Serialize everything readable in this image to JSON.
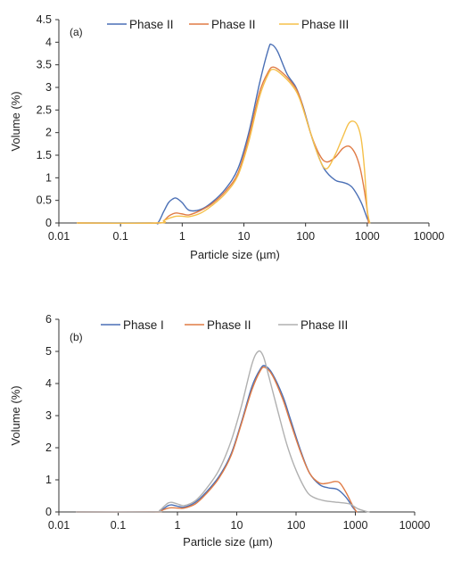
{
  "chart_data": [
    {
      "type": "line",
      "panel_label": "(a)",
      "xlabel": "Particle size (µm)",
      "ylabel": "Volume (%)",
      "x_scale": "log",
      "xlim": [
        0.01,
        10000
      ],
      "ylim": [
        0,
        4.5
      ],
      "x_ticks": [
        "0.01",
        "0.1",
        "1",
        "10",
        "100",
        "1000",
        "10000"
      ],
      "y_ticks": [
        "0",
        "0.5",
        "1",
        "1.5",
        "2",
        "2.5",
        "3",
        "3.5",
        "4",
        "4.5"
      ],
      "legend_position": "top",
      "grid": false,
      "series": [
        {
          "name": "Phase II",
          "color": "#4a6fb5",
          "x": [
            0.02,
            0.3,
            0.4,
            0.5,
            0.6,
            0.7,
            0.8,
            1.0,
            1.3,
            2,
            3,
            5,
            8,
            12,
            18,
            25,
            28,
            35,
            50,
            70,
            90,
            120,
            150,
            200,
            300,
            400,
            500,
            600,
            800,
            1000,
            1100
          ],
          "y": [
            0,
            0,
            0,
            0.25,
            0.45,
            0.53,
            0.55,
            0.45,
            0.28,
            0.3,
            0.45,
            0.75,
            1.2,
            2.0,
            3.1,
            3.85,
            3.95,
            3.8,
            3.3,
            3.0,
            2.6,
            2.0,
            1.6,
            1.2,
            0.95,
            0.9,
            0.85,
            0.75,
            0.45,
            0.1,
            0
          ]
        },
        {
          "name": "Phase II",
          "color": "#e07b45",
          "x": [
            0.02,
            0.4,
            0.5,
            0.6,
            0.7,
            0.8,
            1.0,
            1.3,
            2,
            3,
            5,
            8,
            12,
            18,
            25,
            30,
            40,
            60,
            80,
            120,
            170,
            220,
            300,
            400,
            500,
            600,
            700,
            800,
            950,
            1050
          ],
          "y": [
            0,
            0,
            0.05,
            0.15,
            0.2,
            0.22,
            0.2,
            0.18,
            0.28,
            0.42,
            0.7,
            1.1,
            1.9,
            2.9,
            3.35,
            3.45,
            3.35,
            3.1,
            2.8,
            2.0,
            1.5,
            1.35,
            1.45,
            1.65,
            1.7,
            1.6,
            1.4,
            1.1,
            0.5,
            0
          ]
        },
        {
          "name": "Phase III",
          "color": "#f5c04a",
          "x": [
            0.02,
            0.4,
            0.5,
            0.6,
            0.7,
            0.8,
            1.0,
            1.3,
            2,
            3,
            5,
            8,
            12,
            18,
            25,
            30,
            40,
            60,
            80,
            120,
            170,
            220,
            300,
            400,
            500,
            600,
            700,
            800,
            900,
            1000,
            1100
          ],
          "y": [
            0,
            0,
            0.05,
            0.1,
            0.13,
            0.15,
            0.15,
            0.14,
            0.22,
            0.38,
            0.65,
            1.05,
            1.8,
            2.8,
            3.3,
            3.4,
            3.3,
            3.05,
            2.75,
            2.0,
            1.4,
            1.2,
            1.5,
            1.9,
            2.2,
            2.25,
            2.15,
            1.85,
            1.2,
            0.3,
            0
          ]
        }
      ]
    },
    {
      "type": "line",
      "panel_label": "(b)",
      "xlabel": "Particle size (µm)",
      "ylabel": "Volume (%)",
      "x_scale": "log",
      "xlim": [
        0.01,
        10000
      ],
      "ylim": [
        0,
        6
      ],
      "x_ticks": [
        "0.01",
        "0.1",
        "1",
        "10",
        "100",
        "1000",
        "10000"
      ],
      "y_ticks": [
        "0",
        "1",
        "2",
        "3",
        "4",
        "5",
        "6"
      ],
      "legend_position": "top",
      "grid": false,
      "series": [
        {
          "name": "Phase I",
          "color": "#4a6fb5",
          "x": [
            0.02,
            0.4,
            0.5,
            0.6,
            0.7,
            0.8,
            1.0,
            1.3,
            2,
            3,
            5,
            8,
            12,
            18,
            25,
            30,
            40,
            60,
            80,
            120,
            170,
            250,
            350,
            500,
            700,
            900,
            1050
          ],
          "y": [
            0,
            0,
            0.02,
            0.12,
            0.2,
            0.22,
            0.18,
            0.15,
            0.3,
            0.6,
            1.1,
            1.8,
            2.8,
            3.9,
            4.45,
            4.55,
            4.3,
            3.6,
            2.9,
            1.9,
            1.2,
            0.85,
            0.75,
            0.7,
            0.45,
            0.15,
            0
          ]
        },
        {
          "name": "Phase II",
          "color": "#e07b45",
          "x": [
            0.02,
            0.4,
            0.5,
            0.6,
            0.7,
            0.8,
            1.0,
            1.3,
            2,
            3,
            5,
            8,
            12,
            18,
            25,
            30,
            40,
            60,
            80,
            120,
            170,
            250,
            350,
            450,
            550,
            700,
            900,
            1050
          ],
          "y": [
            0,
            0,
            0.02,
            0.08,
            0.12,
            0.13,
            0.12,
            0.12,
            0.25,
            0.55,
            1.05,
            1.75,
            2.75,
            3.8,
            4.4,
            4.5,
            4.25,
            3.5,
            2.8,
            1.85,
            1.2,
            0.9,
            0.9,
            0.95,
            0.9,
            0.6,
            0.2,
            0
          ]
        },
        {
          "name": "Phase III",
          "color": "#b0b0b0",
          "x": [
            0.02,
            0.4,
            0.5,
            0.6,
            0.7,
            0.8,
            1.0,
            1.3,
            2,
            3,
            5,
            8,
            12,
            18,
            23,
            28,
            35,
            50,
            70,
            100,
            150,
            200,
            300,
            500,
            800,
            1100,
            1500,
            1700
          ],
          "y": [
            0,
            0,
            0.05,
            0.18,
            0.28,
            0.3,
            0.25,
            0.2,
            0.35,
            0.7,
            1.3,
            2.2,
            3.3,
            4.6,
            5.0,
            4.85,
            4.2,
            3.1,
            2.1,
            1.3,
            0.65,
            0.45,
            0.35,
            0.3,
            0.25,
            0.1,
            0.02,
            0
          ]
        }
      ]
    }
  ]
}
